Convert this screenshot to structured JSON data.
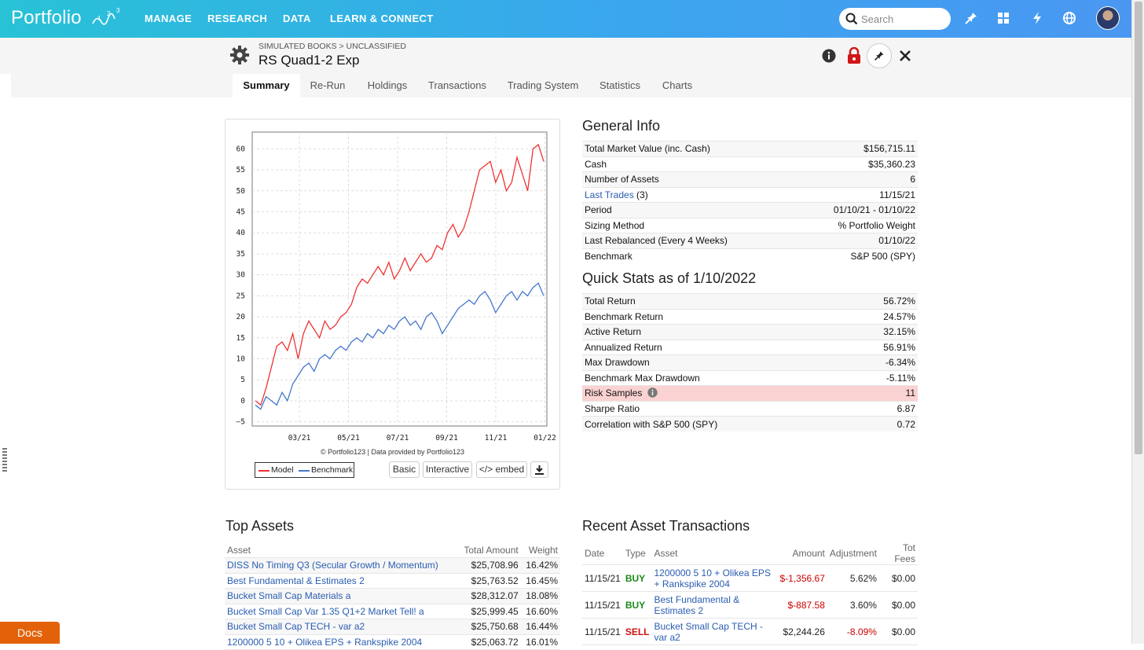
{
  "nav": {
    "brand": "Portfolio",
    "items": [
      "MANAGE",
      "RESEARCH",
      "DATA",
      "LEARN & CONNECT"
    ],
    "search_placeholder": "Search",
    "icons": [
      "pin-icon",
      "grid-icon",
      "lightning-icon",
      "globe-icon"
    ]
  },
  "page": {
    "breadcrumb": "SIMULATED BOOKS > UNCLASSIFIED",
    "title": "RS Quad1-2 Exp"
  },
  "tabs": [
    "Summary",
    "Re-Run",
    "Holdings",
    "Transactions",
    "Trading System",
    "Statistics",
    "Charts"
  ],
  "active_tab": "Summary",
  "chart": {
    "credit": "© Portfolio123 | Data provided by Portfolio123",
    "legend": [
      "Model",
      "Benchmark"
    ],
    "buttons": [
      "Basic",
      "Interactive",
      "</> embed"
    ]
  },
  "chart_data": {
    "type": "line",
    "x_ticks": [
      "03/21",
      "05/21",
      "07/21",
      "09/21",
      "11/21",
      "01/22"
    ],
    "y_ticks": [
      -5,
      0,
      5,
      10,
      15,
      20,
      25,
      30,
      35,
      40,
      45,
      50,
      55,
      60
    ],
    "ylim": [
      -6,
      64
    ],
    "series": [
      {
        "name": "Model",
        "color": "#ee3333",
        "points": [
          [
            0,
            0
          ],
          [
            3,
            -1
          ],
          [
            6,
            3
          ],
          [
            9,
            8
          ],
          [
            12,
            13
          ],
          [
            15,
            14
          ],
          [
            18,
            12
          ],
          [
            21,
            16
          ],
          [
            24,
            10
          ],
          [
            27,
            16
          ],
          [
            30,
            19
          ],
          [
            33,
            17
          ],
          [
            36,
            15
          ],
          [
            39,
            19
          ],
          [
            42,
            17
          ],
          [
            45,
            18
          ],
          [
            48,
            20
          ],
          [
            51,
            21
          ],
          [
            54,
            23
          ],
          [
            57,
            27
          ],
          [
            60,
            29
          ],
          [
            63,
            28
          ],
          [
            66,
            30
          ],
          [
            69,
            32
          ],
          [
            72,
            30
          ],
          [
            75,
            33
          ],
          [
            78,
            29
          ],
          [
            81,
            31
          ],
          [
            84,
            34
          ],
          [
            87,
            31
          ],
          [
            90,
            33
          ],
          [
            93,
            35
          ],
          [
            96,
            33
          ],
          [
            99,
            34
          ],
          [
            102,
            37
          ],
          [
            105,
            36
          ],
          [
            108,
            40
          ],
          [
            111,
            42
          ],
          [
            114,
            39
          ],
          [
            117,
            41
          ],
          [
            120,
            45
          ],
          [
            123,
            50
          ],
          [
            126,
            55
          ],
          [
            129,
            56
          ],
          [
            132,
            57
          ],
          [
            135,
            52
          ],
          [
            138,
            55
          ],
          [
            141,
            50
          ],
          [
            144,
            52
          ],
          [
            147,
            58
          ],
          [
            150,
            54
          ],
          [
            153,
            50
          ],
          [
            156,
            60
          ],
          [
            159,
            61
          ],
          [
            162,
            57
          ]
        ]
      },
      {
        "name": "Benchmark",
        "color": "#4477cc",
        "points": [
          [
            0,
            -1
          ],
          [
            3,
            -2
          ],
          [
            6,
            1
          ],
          [
            9,
            0
          ],
          [
            12,
            -1
          ],
          [
            15,
            2
          ],
          [
            18,
            0
          ],
          [
            21,
            4
          ],
          [
            24,
            6
          ],
          [
            27,
            8
          ],
          [
            30,
            9
          ],
          [
            33,
            7
          ],
          [
            36,
            10
          ],
          [
            39,
            11
          ],
          [
            42,
            10
          ],
          [
            45,
            12
          ],
          [
            48,
            13
          ],
          [
            51,
            12
          ],
          [
            54,
            14
          ],
          [
            57,
            15
          ],
          [
            60,
            14
          ],
          [
            63,
            16
          ],
          [
            66,
            15
          ],
          [
            69,
            17
          ],
          [
            72,
            16
          ],
          [
            75,
            18
          ],
          [
            78,
            17
          ],
          [
            81,
            19
          ],
          [
            84,
            20
          ],
          [
            87,
            18
          ],
          [
            90,
            19
          ],
          [
            93,
            17
          ],
          [
            96,
            20
          ],
          [
            99,
            21
          ],
          [
            102,
            19
          ],
          [
            105,
            16
          ],
          [
            108,
            18
          ],
          [
            111,
            20
          ],
          [
            114,
            22
          ],
          [
            117,
            23
          ],
          [
            120,
            24
          ],
          [
            123,
            23
          ],
          [
            126,
            25
          ],
          [
            129,
            26
          ],
          [
            132,
            24
          ],
          [
            135,
            21
          ],
          [
            138,
            23
          ],
          [
            141,
            25
          ],
          [
            144,
            26
          ],
          [
            147,
            24
          ],
          [
            150,
            26
          ],
          [
            153,
            25
          ],
          [
            156,
            27
          ],
          [
            159,
            28
          ],
          [
            162,
            25
          ]
        ]
      }
    ]
  },
  "general_info": {
    "title": "General Info",
    "rows": [
      {
        "k": "Total Market Value (inc. Cash)",
        "v": "$156,715.11"
      },
      {
        "k": "Cash",
        "v": "$35,360.23"
      },
      {
        "k": "Number of Assets",
        "v": "6"
      },
      {
        "k": "Last Trades",
        "k2": "(3)",
        "v": "11/15/21"
      },
      {
        "k": "Period",
        "v": "01/10/21 - 01/10/22"
      },
      {
        "k": "Sizing Method",
        "v": "% Portfolio Weight"
      },
      {
        "k": "Last Rebalanced (Every 4 Weeks)",
        "v": "01/10/22"
      },
      {
        "k": "Benchmark",
        "v": "S&P 500 (SPY)"
      }
    ]
  },
  "quick_stats": {
    "title": "Quick Stats as of 1/10/2022",
    "rows": [
      {
        "k": "Total Return",
        "v": "56.72%"
      },
      {
        "k": "Benchmark Return",
        "v": "24.57%"
      },
      {
        "k": "Active Return",
        "v": "32.15%"
      },
      {
        "k": "Annualized Return",
        "v": "56.91%"
      },
      {
        "k": "Max Drawdown",
        "v": "-6.34%"
      },
      {
        "k": "Benchmark Max Drawdown",
        "v": "-5.11%"
      },
      {
        "k": "Risk Samples",
        "v": "11"
      },
      {
        "k": "Sharpe Ratio",
        "v": "6.87"
      },
      {
        "k": "Correlation with S&P 500 (SPY)",
        "v": "0.72"
      }
    ]
  },
  "top_assets": {
    "title": "Top Assets",
    "headers": [
      "Asset",
      "Total Amount",
      "Weight"
    ],
    "rows": [
      [
        "DISS No Timing Q3 (Secular Growth / Momentum)",
        "$25,708.96",
        "16.42%"
      ],
      [
        "Best Fundamental & Estimates 2",
        "$25,763.52",
        "16.45%"
      ],
      [
        "Bucket Small Cap Materials a",
        "$28,312.07",
        "18.08%"
      ],
      [
        "Bucket Small Cap Var 1.35 Q1+2 Market Tell! a",
        "$25,999.45",
        "16.60%"
      ],
      [
        "Bucket Small Cap TECH - var a2",
        "$25,750.68",
        "16.44%"
      ],
      [
        "1200000 5 10 + Olikea EPS + Rankspike 2004",
        "$25,063.72",
        "16.01%"
      ]
    ]
  },
  "recent_tx": {
    "title": "Recent Asset Transactions",
    "headers": [
      "Date",
      "Type",
      "Asset",
      "Amount",
      "Adjustment",
      "Tot Fees"
    ],
    "rows": [
      [
        "11/15/21",
        "BUY",
        "1200000 5 10 + Olikea EPS + Rankspike 2004",
        "$-1,356.67",
        "5.62%",
        "$0.00"
      ],
      [
        "11/15/21",
        "BUY",
        "Best Fundamental & Estimates 2",
        "$-887.58",
        "3.60%",
        "$0.00"
      ],
      [
        "11/15/21",
        "SELL",
        "Bucket Small Cap TECH - var a2",
        "$2,244.26",
        "-8.09%",
        "$0.00"
      ]
    ]
  },
  "docs_label": "Docs"
}
